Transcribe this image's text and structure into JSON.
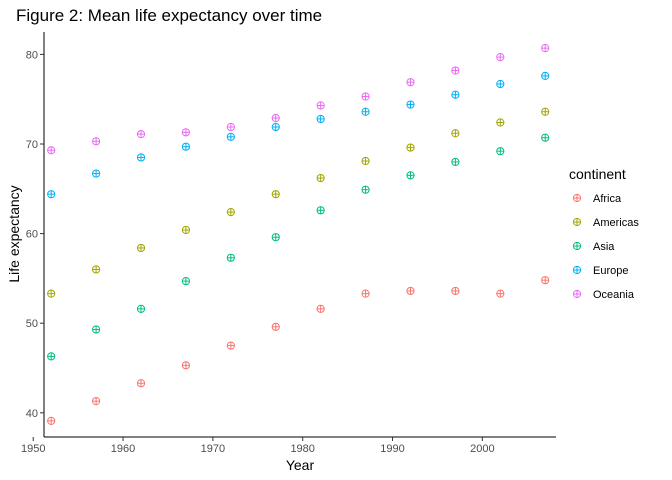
{
  "chart_data": {
    "type": "scatter",
    "title": "Figure 2: Mean life expectancy over time",
    "xlabel": "Year",
    "ylabel": "Life expectancy",
    "xlim": [
      1951.2,
      2008.2
    ],
    "ylim": [
      37.3,
      82.5
    ],
    "xticks": [
      1950,
      1960,
      1970,
      1980,
      1990,
      2000
    ],
    "yticks": [
      40,
      50,
      60,
      70,
      80
    ],
    "grid": false,
    "marker": "circle-plus",
    "legend": {
      "title": "continent",
      "position": "right"
    },
    "x": [
      1952,
      1957,
      1962,
      1967,
      1972,
      1977,
      1982,
      1987,
      1992,
      1997,
      2002,
      2007
    ],
    "series": [
      {
        "name": "Africa",
        "color": "#F8766D",
        "values": [
          39.1,
          41.3,
          43.3,
          45.3,
          47.5,
          49.6,
          51.6,
          53.3,
          53.6,
          53.6,
          53.3,
          54.8
        ]
      },
      {
        "name": "Americas",
        "color": "#A3A500",
        "values": [
          53.3,
          56.0,
          58.4,
          60.4,
          62.4,
          64.4,
          66.2,
          68.1,
          69.6,
          71.2,
          72.4,
          73.6
        ]
      },
      {
        "name": "Asia",
        "color": "#00BF7D",
        "values": [
          46.3,
          49.3,
          51.6,
          54.7,
          57.3,
          59.6,
          62.6,
          64.9,
          66.5,
          68.0,
          69.2,
          70.7
        ]
      },
      {
        "name": "Europe",
        "color": "#00B0F6",
        "values": [
          64.4,
          66.7,
          68.5,
          69.7,
          70.8,
          71.9,
          72.8,
          73.6,
          74.4,
          75.5,
          76.7,
          77.6
        ]
      },
      {
        "name": "Oceania",
        "color": "#E76BF3",
        "values": [
          69.3,
          70.3,
          71.1,
          71.3,
          71.9,
          72.9,
          74.3,
          75.3,
          76.9,
          78.2,
          79.7,
          80.7
        ]
      }
    ]
  }
}
